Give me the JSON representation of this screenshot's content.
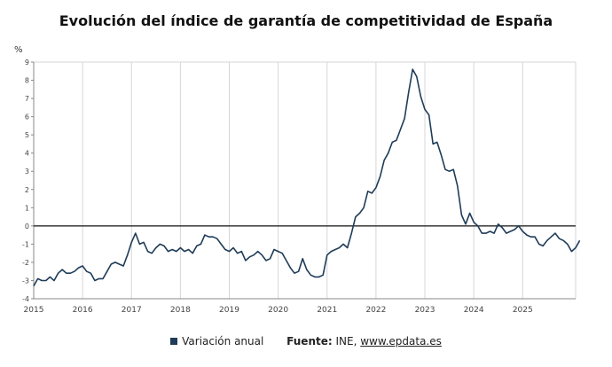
{
  "chart_data": {
    "type": "line",
    "title": "Evolución del índice de garantía de competitividad de España",
    "ylabel": "%",
    "xlabel": "",
    "x_ticks": [
      "2015",
      "2016",
      "2017",
      "2018",
      "2019",
      "2020",
      "2021",
      "2022",
      "2023",
      "2024",
      "2025"
    ],
    "y_ticks": [
      "-4",
      "-3",
      "-2",
      "-1",
      "0",
      "1",
      "2",
      "3",
      "4",
      "5",
      "6",
      "7",
      "8",
      "9"
    ],
    "ylim": [
      -4,
      9
    ],
    "xlim": [
      "2015-01",
      "2026-02"
    ],
    "grid": "vertical",
    "zero_line": true,
    "legend_position": "bottom",
    "series": [
      {
        "name": "Variación anual",
        "color": "#1f3c58",
        "points": [
          [
            "2015-01",
            -3.3
          ],
          [
            "2015-02",
            -2.9
          ],
          [
            "2015-03",
            -3.0
          ],
          [
            "2015-04",
            -3.0
          ],
          [
            "2015-05",
            -2.8
          ],
          [
            "2015-06",
            -3.0
          ],
          [
            "2015-07",
            -2.6
          ],
          [
            "2015-08",
            -2.4
          ],
          [
            "2015-09",
            -2.6
          ],
          [
            "2015-10",
            -2.6
          ],
          [
            "2015-11",
            -2.5
          ],
          [
            "2015-12",
            -2.3
          ],
          [
            "2016-01",
            -2.2
          ],
          [
            "2016-02",
            -2.5
          ],
          [
            "2016-03",
            -2.6
          ],
          [
            "2016-04",
            -3.0
          ],
          [
            "2016-05",
            -2.9
          ],
          [
            "2016-06",
            -2.9
          ],
          [
            "2016-07",
            -2.5
          ],
          [
            "2016-08",
            -2.1
          ],
          [
            "2016-09",
            -2.0
          ],
          [
            "2016-10",
            -2.1
          ],
          [
            "2016-11",
            -2.2
          ],
          [
            "2016-12",
            -1.6
          ],
          [
            "2017-01",
            -0.9
          ],
          [
            "2017-02",
            -0.4
          ],
          [
            "2017-03",
            -1.0
          ],
          [
            "2017-04",
            -0.9
          ],
          [
            "2017-05",
            -1.4
          ],
          [
            "2017-06",
            -1.5
          ],
          [
            "2017-07",
            -1.2
          ],
          [
            "2017-08",
            -1.0
          ],
          [
            "2017-09",
            -1.1
          ],
          [
            "2017-10",
            -1.4
          ],
          [
            "2017-11",
            -1.3
          ],
          [
            "2017-12",
            -1.4
          ],
          [
            "2018-01",
            -1.2
          ],
          [
            "2018-02",
            -1.4
          ],
          [
            "2018-03",
            -1.3
          ],
          [
            "2018-04",
            -1.5
          ],
          [
            "2018-05",
            -1.1
          ],
          [
            "2018-06",
            -1.0
          ],
          [
            "2018-07",
            -0.5
          ],
          [
            "2018-08",
            -0.6
          ],
          [
            "2018-09",
            -0.6
          ],
          [
            "2018-10",
            -0.7
          ],
          [
            "2018-11",
            -1.0
          ],
          [
            "2018-12",
            -1.3
          ],
          [
            "2019-01",
            -1.4
          ],
          [
            "2019-02",
            -1.2
          ],
          [
            "2019-03",
            -1.5
          ],
          [
            "2019-04",
            -1.4
          ],
          [
            "2019-05",
            -1.9
          ],
          [
            "2019-06",
            -1.7
          ],
          [
            "2019-07",
            -1.6
          ],
          [
            "2019-08",
            -1.4
          ],
          [
            "2019-09",
            -1.6
          ],
          [
            "2019-10",
            -1.9
          ],
          [
            "2019-11",
            -1.8
          ],
          [
            "2019-12",
            -1.3
          ],
          [
            "2020-01",
            -1.4
          ],
          [
            "2020-02",
            -1.5
          ],
          [
            "2020-03",
            -1.9
          ],
          [
            "2020-04",
            -2.3
          ],
          [
            "2020-05",
            -2.6
          ],
          [
            "2020-06",
            -2.5
          ],
          [
            "2020-07",
            -1.8
          ],
          [
            "2020-08",
            -2.4
          ],
          [
            "2020-09",
            -2.7
          ],
          [
            "2020-10",
            -2.8
          ],
          [
            "2020-11",
            -2.8
          ],
          [
            "2020-12",
            -2.7
          ],
          [
            "2021-01",
            -1.6
          ],
          [
            "2021-02",
            -1.4
          ],
          [
            "2021-03",
            -1.3
          ],
          [
            "2021-04",
            -1.2
          ],
          [
            "2021-05",
            -1.0
          ],
          [
            "2021-06",
            -1.2
          ],
          [
            "2021-07",
            -0.4
          ],
          [
            "2021-08",
            0.5
          ],
          [
            "2021-09",
            0.7
          ],
          [
            "2021-10",
            1.0
          ],
          [
            "2021-11",
            1.9
          ],
          [
            "2021-12",
            1.8
          ],
          [
            "2022-01",
            2.1
          ],
          [
            "2022-02",
            2.7
          ],
          [
            "2022-03",
            3.6
          ],
          [
            "2022-04",
            4.0
          ],
          [
            "2022-05",
            4.6
          ],
          [
            "2022-06",
            4.7
          ],
          [
            "2022-07",
            5.3
          ],
          [
            "2022-08",
            5.9
          ],
          [
            "2022-09",
            7.3
          ],
          [
            "2022-10",
            8.6
          ],
          [
            "2022-11",
            8.2
          ],
          [
            "2022-12",
            7.1
          ],
          [
            "2023-01",
            6.4
          ],
          [
            "2023-02",
            6.1
          ],
          [
            "2023-03",
            4.5
          ],
          [
            "2023-04",
            4.6
          ],
          [
            "2023-05",
            3.9
          ],
          [
            "2023-06",
            3.1
          ],
          [
            "2023-07",
            3.0
          ],
          [
            "2023-08",
            3.1
          ],
          [
            "2023-09",
            2.2
          ],
          [
            "2023-10",
            0.6
          ],
          [
            "2023-11",
            0.1
          ],
          [
            "2023-12",
            0.7
          ],
          [
            "2024-01",
            0.2
          ],
          [
            "2024-02",
            0.0
          ],
          [
            "2024-03",
            -0.4
          ],
          [
            "2024-04",
            -0.4
          ],
          [
            "2024-05",
            -0.3
          ],
          [
            "2024-06",
            -0.4
          ],
          [
            "2024-07",
            0.1
          ],
          [
            "2024-08",
            -0.1
          ],
          [
            "2024-09",
            -0.4
          ],
          [
            "2024-10",
            -0.3
          ],
          [
            "2024-11",
            -0.2
          ],
          [
            "2024-12",
            0.0
          ],
          [
            "2025-01",
            -0.3
          ],
          [
            "2025-02",
            -0.5
          ],
          [
            "2025-03",
            -0.6
          ],
          [
            "2025-04",
            -0.6
          ],
          [
            "2025-05",
            -1.0
          ],
          [
            "2025-06",
            -1.1
          ],
          [
            "2025-07",
            -0.8
          ],
          [
            "2025-08",
            -0.6
          ],
          [
            "2025-09",
            -0.4
          ],
          [
            "2025-10",
            -0.7
          ],
          [
            "2025-11",
            -0.8
          ],
          [
            "2025-12",
            -1.0
          ],
          [
            "2026-01",
            -1.4
          ],
          [
            "2026-02",
            -1.2
          ],
          [
            "2026-03",
            -0.8
          ]
        ]
      }
    ]
  },
  "legend": {
    "series_label": "Variación anual",
    "source_label": "Fuente:",
    "source_text": "INE,",
    "source_link": "www.epdata.es"
  }
}
